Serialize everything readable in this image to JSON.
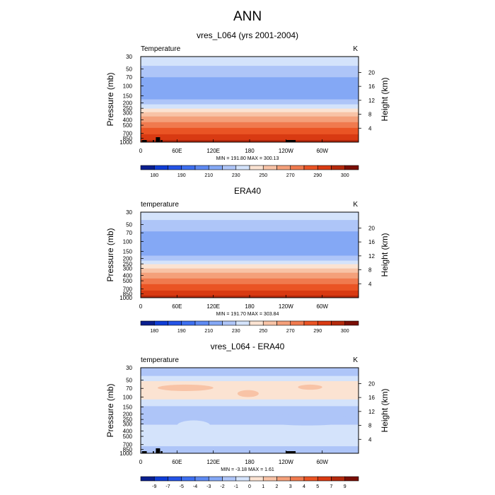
{
  "figure": {
    "title": "ANN"
  },
  "chart_data": [
    {
      "type": "heatmap",
      "title": "vres_L064 (yrs 2001-2004)",
      "left_label": "Temperature",
      "units_label": "K",
      "ylabel": "Pressure (mb)",
      "right_ylabel": "Height (km)",
      "x_ticks": [
        "0",
        "60E",
        "120E",
        "180",
        "120W",
        "60W"
      ],
      "x_tick_values": [
        0,
        60,
        120,
        180,
        240,
        300
      ],
      "xlim": [
        0,
        360
      ],
      "y_ticks": [
        "30",
        "50",
        "70",
        "100",
        "150",
        "200",
        "250",
        "300",
        "400",
        "500",
        "700",
        "850",
        "1000"
      ],
      "y_tick_values": [
        30,
        50,
        70,
        100,
        150,
        200,
        250,
        300,
        400,
        500,
        700,
        850,
        1000
      ],
      "ylim": [
        30,
        1000
      ],
      "y_scale": "log",
      "right_ticks": [
        "20",
        "16",
        "12",
        "8",
        "4"
      ],
      "right_tick_values": [
        20,
        16,
        12,
        8,
        4
      ],
      "stats_text": "MIN = 191.80  MAX = 300.13",
      "colorbar_labels": [
        "180",
        "190",
        "210",
        "230",
        "250",
        "270",
        "290",
        "300"
      ],
      "colorbar_colors": [
        "#0a1f8f",
        "#0f3dd6",
        "#2453e6",
        "#3d6ff0",
        "#5e8af2",
        "#84a8f5",
        "#aec5f8",
        "#d4e3fb",
        "#fbe3d2",
        "#f8c3a6",
        "#f4a07a",
        "#f07a4e",
        "#ea5424",
        "#d93a12",
        "#b4290c",
        "#7a0e05"
      ],
      "profile": {
        "p": [
          30,
          40,
          50,
          60,
          70,
          85,
          100,
          120,
          150,
          170,
          200,
          230,
          250,
          280,
          300,
          350,
          400,
          450,
          500,
          600,
          700,
          800,
          850,
          925,
          1000
        ],
        "t": [
          228,
          222,
          217,
          213,
          210,
          206,
          204,
          203,
          205,
          209,
          216,
          224,
          230,
          236,
          241,
          250,
          256,
          261,
          265,
          273,
          279,
          284,
          287,
          291,
          295
        ]
      },
      "topography_lon_bands": [
        [
          2,
          10
        ],
        [
          20,
          22
        ],
        [
          25,
          32
        ],
        [
          33,
          36
        ],
        [
          240,
          256
        ]
      ]
    },
    {
      "type": "heatmap",
      "title": "ERA40",
      "left_label": "temperature",
      "units_label": "K",
      "ylabel": "Pressure (mb)",
      "right_ylabel": "Height (km)",
      "x_ticks": [
        "0",
        "60E",
        "120E",
        "180",
        "120W",
        "60W"
      ],
      "x_tick_values": [
        0,
        60,
        120,
        180,
        240,
        300
      ],
      "xlim": [
        0,
        360
      ],
      "y_ticks": [
        "30",
        "50",
        "70",
        "100",
        "150",
        "200",
        "250",
        "300",
        "400",
        "500",
        "700",
        "850",
        "1000"
      ],
      "y_tick_values": [
        30,
        50,
        70,
        100,
        150,
        200,
        250,
        300,
        400,
        500,
        700,
        850,
        1000
      ],
      "ylim": [
        30,
        1000
      ],
      "y_scale": "log",
      "right_ticks": [
        "20",
        "16",
        "12",
        "8",
        "4"
      ],
      "right_tick_values": [
        20,
        16,
        12,
        8,
        4
      ],
      "stats_text": "MIN = 191.70  MAX = 303.84",
      "colorbar_labels": [
        "180",
        "190",
        "210",
        "230",
        "250",
        "270",
        "290",
        "300"
      ],
      "colorbar_colors": [
        "#0a1f8f",
        "#0f3dd6",
        "#2453e6",
        "#3d6ff0",
        "#5e8af2",
        "#84a8f5",
        "#aec5f8",
        "#d4e3fb",
        "#fbe3d2",
        "#f8c3a6",
        "#f4a07a",
        "#f07a4e",
        "#ea5424",
        "#d93a12",
        "#b4290c",
        "#7a0e05"
      ],
      "profile": {
        "p": [
          30,
          40,
          50,
          60,
          70,
          85,
          100,
          120,
          150,
          170,
          200,
          230,
          250,
          280,
          300,
          350,
          400,
          450,
          500,
          600,
          700,
          800,
          850,
          925,
          1000
        ],
        "t": [
          227,
          221,
          216,
          212,
          209,
          205,
          203,
          202,
          204,
          208,
          215,
          223,
          229,
          235,
          240,
          249,
          255,
          260,
          264,
          272,
          278,
          283,
          286,
          290,
          294
        ]
      },
      "topography_lon_bands": []
    },
    {
      "type": "heatmap",
      "title": "vres_L064 - ERA40",
      "left_label": "temperature",
      "units_label": "K",
      "ylabel": "Pressure (mb)",
      "right_ylabel": "Height (km)",
      "x_ticks": [
        "0",
        "60E",
        "120E",
        "180",
        "120W",
        "60W"
      ],
      "x_tick_values": [
        0,
        60,
        120,
        180,
        240,
        300
      ],
      "xlim": [
        0,
        360
      ],
      "y_ticks": [
        "30",
        "50",
        "70",
        "100",
        "150",
        "200",
        "250",
        "300",
        "400",
        "500",
        "700",
        "850",
        "1000"
      ],
      "y_tick_values": [
        30,
        50,
        70,
        100,
        150,
        200,
        250,
        300,
        400,
        500,
        700,
        850,
        1000
      ],
      "ylim": [
        30,
        1000
      ],
      "y_scale": "log",
      "right_ticks": [
        "20",
        "16",
        "12",
        "8",
        "4"
      ],
      "right_tick_values": [
        20,
        16,
        12,
        8,
        4
      ],
      "stats_text": "MIN =  -3.18  MAX =   1.61",
      "colorbar_labels": [
        "-9",
        "-7",
        "-5",
        "-4",
        "-3",
        "-2",
        "-1",
        "0",
        "1",
        "2",
        "3",
        "4",
        "5",
        "7",
        "9"
      ],
      "colorbar_colors": [
        "#0a1f8f",
        "#0f3dd6",
        "#2453e6",
        "#3d6ff0",
        "#5e8af2",
        "#84a8f5",
        "#aec5f8",
        "#d4e3fb",
        "#fbe3d2",
        "#f8c3a6",
        "#f4a07a",
        "#f07a4e",
        "#ea5424",
        "#d93a12",
        "#b4290c",
        "#7a0e05"
      ],
      "diff_bands": [
        {
          "p": [
            30,
            42
          ],
          "value": -1.5
        },
        {
          "p": [
            42,
            52
          ],
          "value": -0.5
        },
        {
          "p": [
            52,
            110
          ],
          "value": 0.5
        },
        {
          "p": [
            110,
            145
          ],
          "value": -0.5
        },
        {
          "p": [
            145,
            310
          ],
          "value": -1.5
        },
        {
          "p": [
            310,
            750
          ],
          "value": -0.5
        },
        {
          "p": [
            750,
            1000
          ],
          "value": -1.5
        }
      ],
      "diff_features": [
        {
          "lon": [
            28,
            120
          ],
          "p": [
            60,
            78
          ],
          "value": 1.5
        },
        {
          "lon": [
            160,
            195
          ],
          "p": [
            75,
            100
          ],
          "value": 1.5
        },
        {
          "lon": [
            260,
            300
          ],
          "p": [
            60,
            74
          ],
          "value": 1.5
        },
        {
          "lon": [
            60,
            115
          ],
          "p": [
            260,
            400
          ],
          "value": -0.5
        },
        {
          "lon": [
            200,
            350
          ],
          "p": [
            200,
            320
          ],
          "value": -1.5
        }
      ],
      "topography_lon_bands": [
        [
          2,
          10
        ],
        [
          20,
          22
        ],
        [
          25,
          32
        ],
        [
          33,
          36
        ],
        [
          240,
          256
        ]
      ]
    }
  ]
}
